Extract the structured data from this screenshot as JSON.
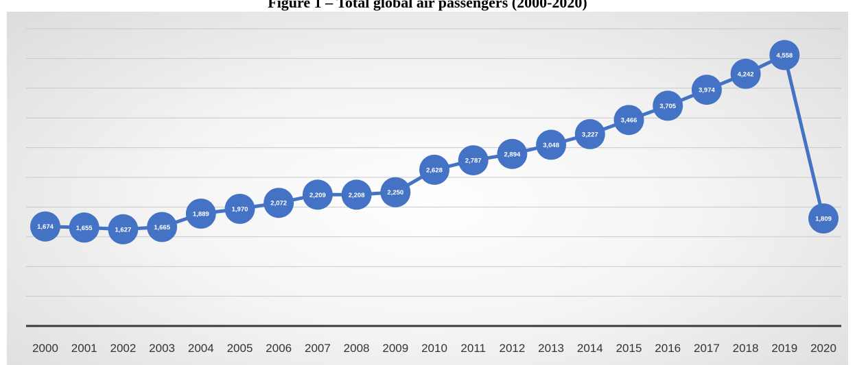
{
  "figure": {
    "title": "Figure 1 – Total global air passengers (2000-2020)"
  },
  "chart_data": {
    "type": "line",
    "title": "Figure 1 – Total global air passengers (2000-2020)",
    "xlabel": "",
    "ylabel": "",
    "ylim": [
      0,
      5000
    ],
    "grid": true,
    "legend": "none",
    "data_labels": true,
    "x": [
      "2000",
      "2001",
      "2002",
      "2003",
      "2004",
      "2005",
      "2006",
      "2007",
      "2008",
      "2009",
      "2010",
      "2011",
      "2012",
      "2013",
      "2014",
      "2015",
      "2016",
      "2017",
      "2018",
      "2019",
      "2020"
    ],
    "values": [
      1674,
      1655,
      1627,
      1665,
      1889,
      1970,
      2072,
      2209,
      2208,
      2250,
      2628,
      2787,
      2894,
      3048,
      3227,
      3466,
      3705,
      3974,
      4242,
      4558,
      1809
    ],
    "value_labels": [
      "1,674",
      "1,655",
      "1,627",
      "1,665",
      "1,889",
      "1,970",
      "2,072",
      "2,209",
      "2,208",
      "2,250",
      "2,628",
      "2,787",
      "2,894",
      "3,048",
      "3,227",
      "3,466",
      "3,705",
      "3,974",
      "4,242",
      "4,558",
      "1,809"
    ],
    "colors": {
      "series": "#4472c4",
      "gridline": "#c8c8c8",
      "axis": "#3a3a3a",
      "label_text": "#ffffff"
    }
  }
}
